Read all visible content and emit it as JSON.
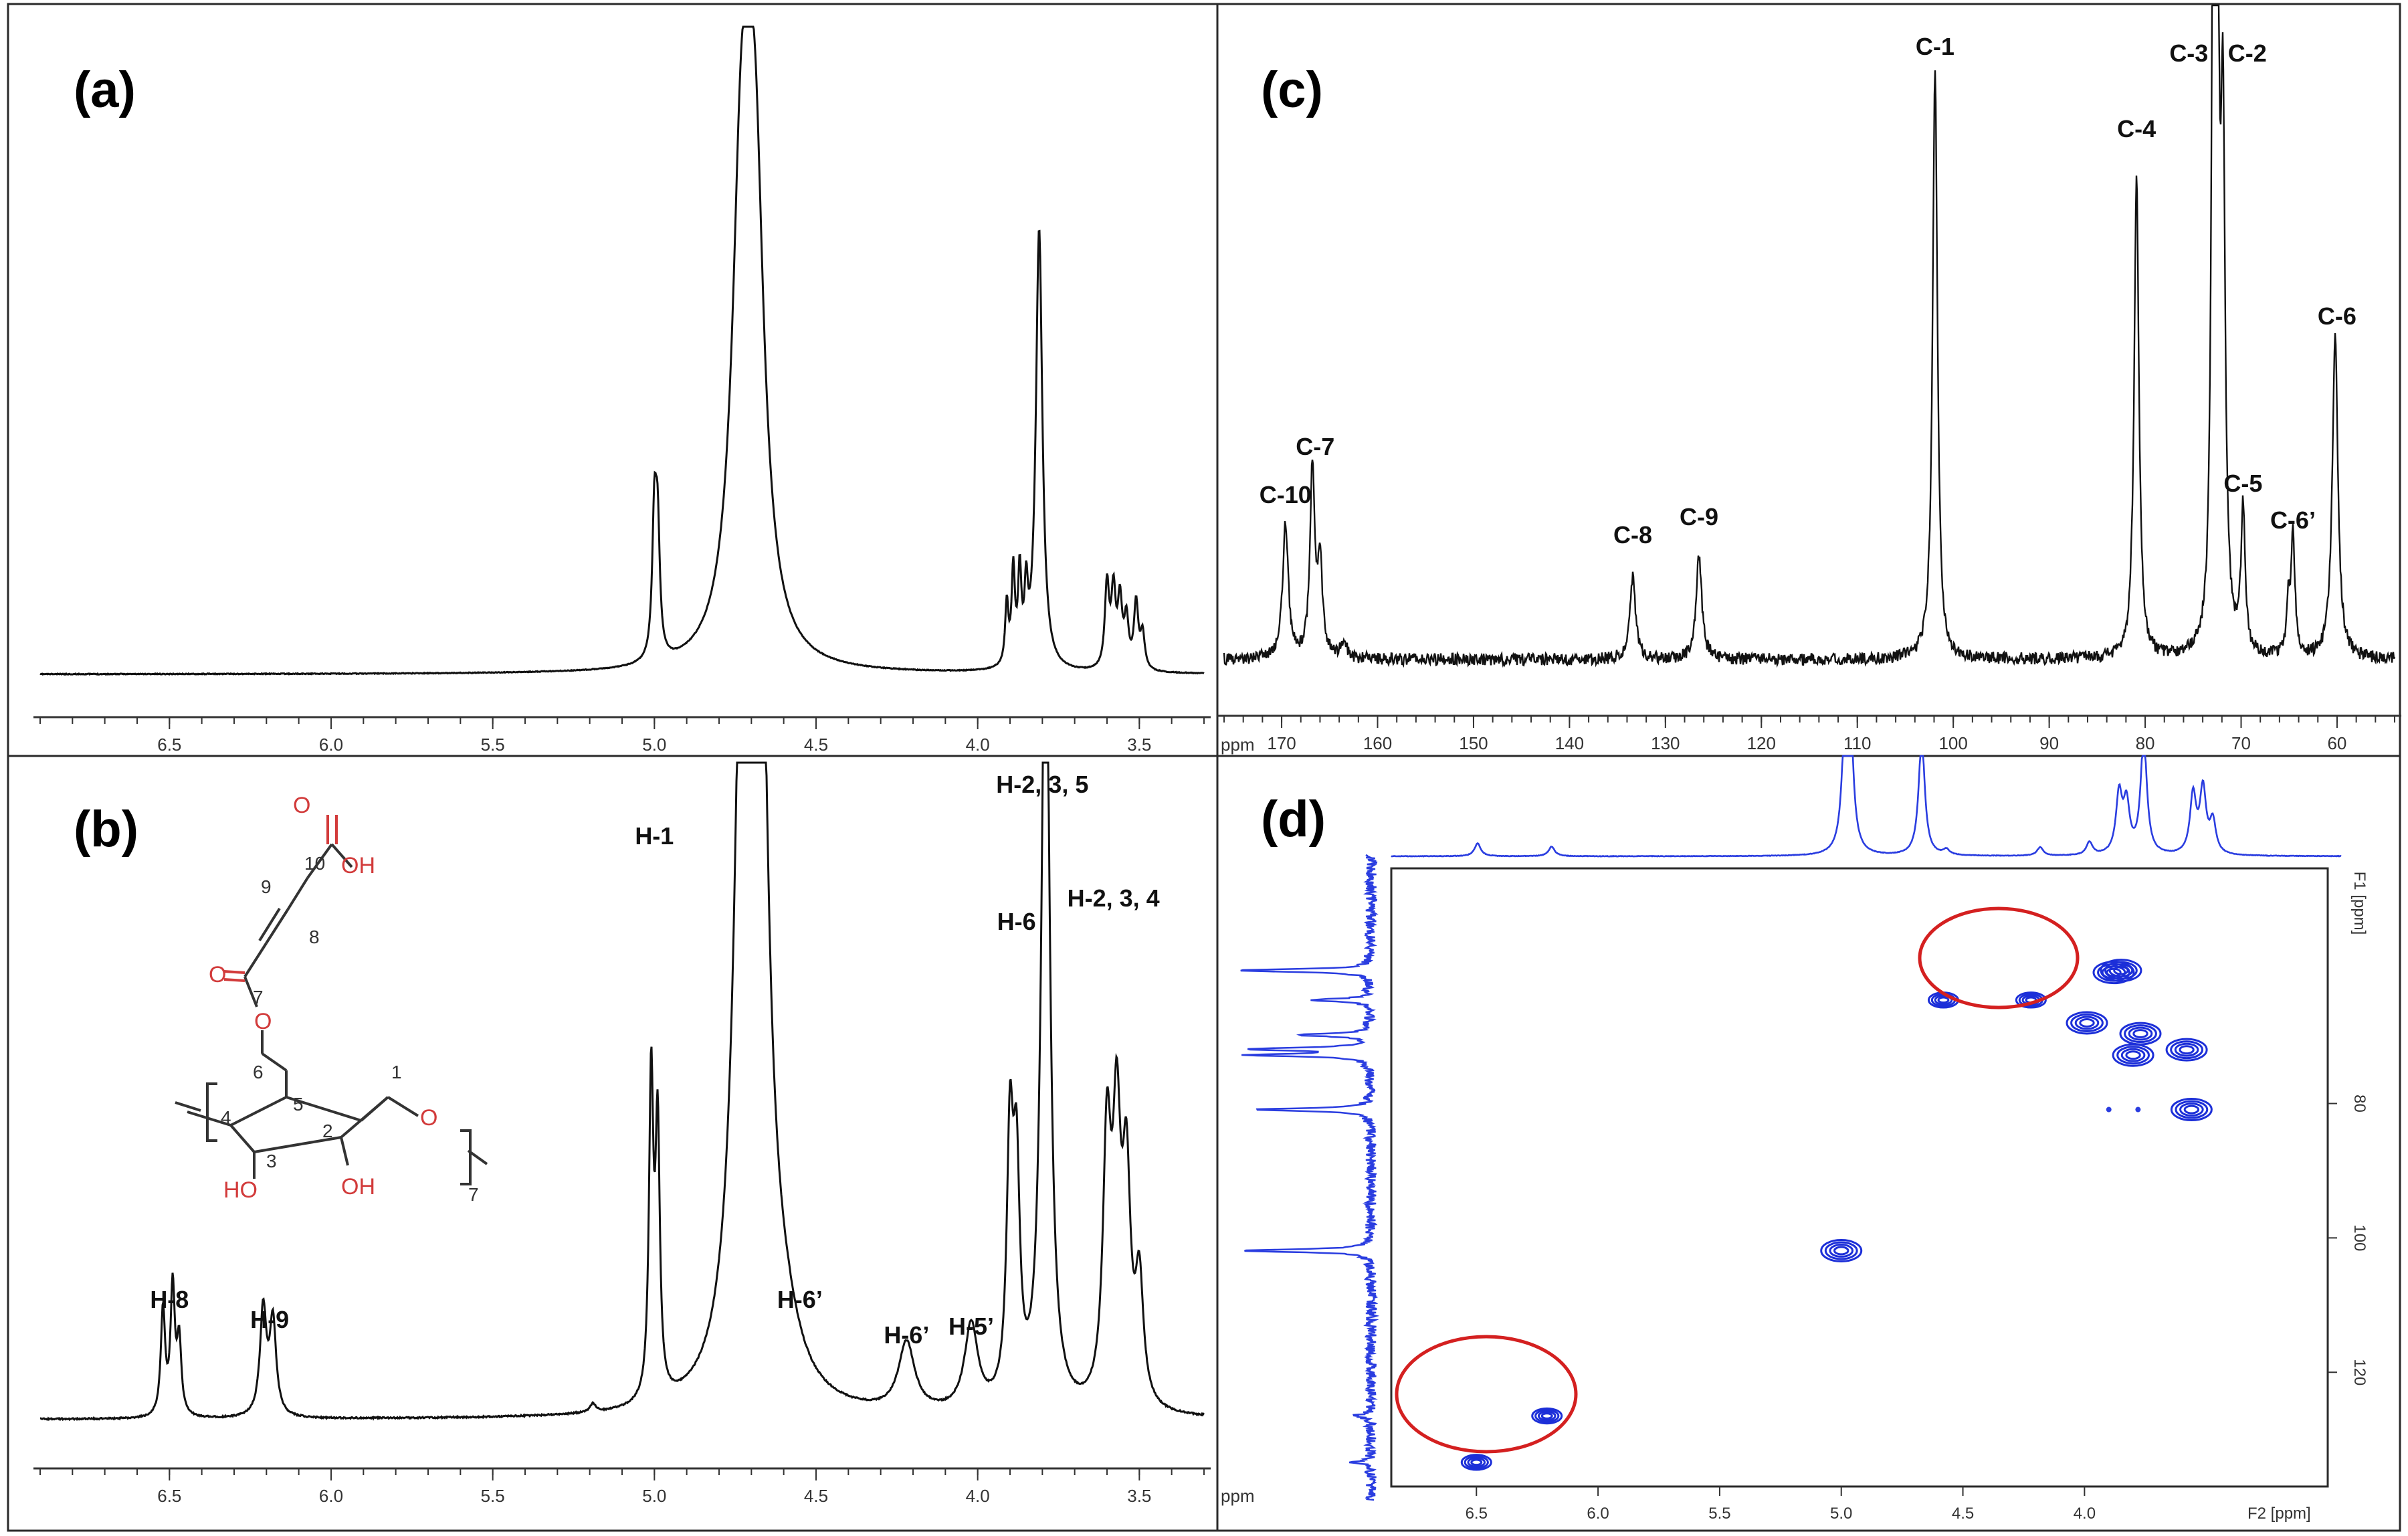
{
  "chart_data": [
    {
      "panel": "(a)",
      "type": "line",
      "spectrum": "1H NMR",
      "x_unit": "ppm",
      "xlim": [
        6.9,
        3.3
      ],
      "x_ticks": [
        "6.5",
        "6.0",
        "5.5",
        "5.0",
        "4.5",
        "4.0",
        "3.5"
      ],
      "peaks": [
        {
          "ppm": 5.0,
          "intensity": 0.62,
          "width": 0.008
        },
        {
          "ppm": 4.99,
          "intensity": 0.55,
          "width": 0.008
        },
        {
          "ppm": 4.73,
          "intensity": 2.0,
          "width": 0.035
        },
        {
          "ppm": 4.69,
          "intensity": 2.0,
          "width": 0.035
        },
        {
          "ppm": 3.91,
          "intensity": 0.28,
          "width": 0.006
        },
        {
          "ppm": 3.89,
          "intensity": 0.42,
          "width": 0.006
        },
        {
          "ppm": 3.87,
          "intensity": 0.4,
          "width": 0.006
        },
        {
          "ppm": 3.85,
          "intensity": 0.3,
          "width": 0.006
        },
        {
          "ppm": 3.81,
          "intensity": 2.0,
          "width": 0.012
        },
        {
          "ppm": 3.6,
          "intensity": 0.38,
          "width": 0.008
        },
        {
          "ppm": 3.58,
          "intensity": 0.34,
          "width": 0.008
        },
        {
          "ppm": 3.56,
          "intensity": 0.3,
          "width": 0.008
        },
        {
          "ppm": 3.54,
          "intensity": 0.22,
          "width": 0.008
        },
        {
          "ppm": 3.51,
          "intensity": 0.3,
          "width": 0.008
        },
        {
          "ppm": 3.49,
          "intensity": 0.16,
          "width": 0.008
        }
      ]
    },
    {
      "panel": "(b)",
      "type": "line",
      "spectrum": "1H NMR",
      "x_unit": "ppm",
      "xlim": [
        6.9,
        3.3
      ],
      "x_ticks": [
        "6.5",
        "6.0",
        "5.5",
        "5.0",
        "4.5",
        "4.0",
        "3.5"
      ],
      "peak_labels": [
        {
          "label": "H-8",
          "ppm": 6.5
        },
        {
          "label": "H-9",
          "ppm": 6.19
        },
        {
          "label": "H-1",
          "ppm": 5.0
        },
        {
          "label": "H-6’",
          "ppm": 4.55
        },
        {
          "label": "H-6’",
          "ppm": 4.22
        },
        {
          "label": "H-5’",
          "ppm": 4.02
        },
        {
          "label": "H-6",
          "ppm": 3.88
        },
        {
          "label": "H-2, 3, 5",
          "ppm": 3.8
        },
        {
          "label": "H-2, 3, 4",
          "ppm": 3.58
        }
      ],
      "peaks": [
        {
          "ppm": 6.52,
          "intensity": 0.25,
          "width": 0.008
        },
        {
          "ppm": 6.49,
          "intensity": 0.3,
          "width": 0.008
        },
        {
          "ppm": 6.47,
          "intensity": 0.17,
          "width": 0.008
        },
        {
          "ppm": 6.21,
          "intensity": 0.25,
          "width": 0.012
        },
        {
          "ppm": 6.18,
          "intensity": 0.22,
          "width": 0.012
        },
        {
          "ppm": 5.19,
          "intensity": 0.02,
          "width": 0.01
        },
        {
          "ppm": 5.01,
          "intensity": 0.75,
          "width": 0.008
        },
        {
          "ppm": 4.99,
          "intensity": 0.62,
          "width": 0.008
        },
        {
          "ppm": 4.72,
          "intensity": 2.0,
          "width": 0.03
        },
        {
          "ppm": 4.68,
          "intensity": 2.0,
          "width": 0.03
        },
        {
          "ppm": 4.6,
          "intensity": 0.1,
          "width": 0.06
        },
        {
          "ppm": 4.22,
          "intensity": 0.16,
          "width": 0.03
        },
        {
          "ppm": 4.02,
          "intensity": 0.2,
          "width": 0.025
        },
        {
          "ppm": 3.9,
          "intensity": 0.6,
          "width": 0.012
        },
        {
          "ppm": 3.88,
          "intensity": 0.5,
          "width": 0.012
        },
        {
          "ppm": 3.79,
          "intensity": 2.0,
          "width": 0.015
        },
        {
          "ppm": 3.6,
          "intensity": 0.6,
          "width": 0.015
        },
        {
          "ppm": 3.57,
          "intensity": 0.6,
          "width": 0.015
        },
        {
          "ppm": 3.54,
          "intensity": 0.5,
          "width": 0.015
        },
        {
          "ppm": 3.5,
          "intensity": 0.28,
          "width": 0.015
        }
      ],
      "structure_labels": {
        "O10a": "O",
        "OH10": "OH",
        "n10": "10",
        "n9": "9",
        "n8": "8",
        "O7a": "O",
        "n7": "7",
        "O7b": "O",
        "n6": "6",
        "n5": "5",
        "n4": "4",
        "n1": "1",
        "n2": "2",
        "n3": "3",
        "OH3": "HO",
        "OH2": "OH",
        "O1": "O",
        "rep": "7"
      }
    },
    {
      "panel": "(c)",
      "type": "line",
      "spectrum": "13C NMR",
      "x_unit": "ppm",
      "xlim": [
        176,
        54
      ],
      "x_ticks": [
        "170",
        "160",
        "150",
        "140",
        "130",
        "120",
        "110",
        "100",
        "90",
        "80",
        "70",
        "60"
      ],
      "peak_labels": [
        {
          "label": "C-10",
          "ppm": 169.6
        },
        {
          "label": "C-7",
          "ppm": 166.5
        },
        {
          "label": "C-8",
          "ppm": 133.4
        },
        {
          "label": "C-9",
          "ppm": 126.5
        },
        {
          "label": "C-1",
          "ppm": 101.9
        },
        {
          "label": "C-4",
          "ppm": 80.9
        },
        {
          "label": "C-3",
          "ppm": 72.8
        },
        {
          "label": "C-2",
          "ppm": 72.0
        },
        {
          "label": "C-5",
          "ppm": 69.8
        },
        {
          "label": "C-6’",
          "ppm": 64.6
        },
        {
          "label": "C-6",
          "ppm": 60.0
        }
      ],
      "peaks": [
        {
          "ppm": 169.6,
          "intensity": 0.33,
          "width": 0.35
        },
        {
          "ppm": 166.8,
          "intensity": 0.45,
          "width": 0.3
        },
        {
          "ppm": 166.0,
          "intensity": 0.22,
          "width": 0.3
        },
        {
          "ppm": 163.5,
          "intensity": 0.05,
          "width": 0.3
        },
        {
          "ppm": 133.4,
          "intensity": 0.2,
          "width": 0.35
        },
        {
          "ppm": 126.5,
          "intensity": 0.25,
          "width": 0.35
        },
        {
          "ppm": 101.9,
          "intensity": 1.42,
          "width": 0.3
        },
        {
          "ppm": 80.9,
          "intensity": 1.15,
          "width": 0.3
        },
        {
          "ppm": 72.9,
          "intensity": 1.7,
          "width": 0.22
        },
        {
          "ppm": 72.5,
          "intensity": 1.7,
          "width": 0.22
        },
        {
          "ppm": 71.9,
          "intensity": 1.2,
          "width": 0.28
        },
        {
          "ppm": 69.8,
          "intensity": 0.35,
          "width": 0.25
        },
        {
          "ppm": 65.1,
          "intensity": 0.12,
          "width": 0.2
        },
        {
          "ppm": 64.6,
          "intensity": 0.29,
          "width": 0.25
        },
        {
          "ppm": 60.2,
          "intensity": 0.78,
          "width": 0.35
        }
      ]
    },
    {
      "panel": "(d)",
      "type": "heatmap",
      "spectrum": "HSQC",
      "x_label": "F2 [ppm]",
      "y_label": "F1 [ppm]",
      "xlim": [
        6.85,
        3.0
      ],
      "ylim": [
        45,
        137
      ],
      "x_ticks": [
        "6.5",
        "6.0",
        "5.5",
        "5.0",
        "4.5",
        "4.0"
      ],
      "y_ticks": [
        "80",
        "100",
        "120"
      ],
      "cross_peaks": [
        {
          "f2": 6.5,
          "f1": 133.4,
          "circled": true
        },
        {
          "f2": 6.21,
          "f1": 126.5,
          "circled": true
        },
        {
          "f2": 5.0,
          "f1": 101.9
        },
        {
          "f2": 4.58,
          "f1": 64.6,
          "circled": true
        },
        {
          "f2": 4.22,
          "f1": 64.6,
          "circled": true
        },
        {
          "f2": 3.88,
          "f1": 60.5
        },
        {
          "f2": 3.8,
          "f1": 72.8
        },
        {
          "f2": 3.77,
          "f1": 69.6
        },
        {
          "f2": 3.58,
          "f1": 72.0
        },
        {
          "f2": 3.56,
          "f1": 80.9
        },
        {
          "f2": 3.85,
          "f1": 60.2
        },
        {
          "f2": 3.99,
          "f1": 68.0
        },
        {
          "f2": 3.9,
          "f1": 80.9,
          "weak": true
        },
        {
          "f2": 3.78,
          "f1": 80.9,
          "weak": true
        }
      ],
      "f2_projection_peaks": [
        {
          "ppm": 6.5,
          "intensity": 0.12
        },
        {
          "ppm": 6.2,
          "intensity": 0.09
        },
        {
          "ppm": 5.01,
          "intensity": 1.1
        },
        {
          "ppm": 4.99,
          "intensity": 1.1
        },
        {
          "ppm": 4.7,
          "intensity": 1.1
        },
        {
          "ppm": 4.6,
          "intensity": 0.05
        },
        {
          "ppm": 4.22,
          "intensity": 0.08
        },
        {
          "ppm": 4.02,
          "intensity": 0.12
        },
        {
          "ppm": 3.9,
          "intensity": 0.55
        },
        {
          "ppm": 3.87,
          "intensity": 0.45
        },
        {
          "ppm": 3.8,
          "intensity": 1.1
        },
        {
          "ppm": 3.6,
          "intensity": 0.55
        },
        {
          "ppm": 3.56,
          "intensity": 0.6
        },
        {
          "ppm": 3.52,
          "intensity": 0.3
        }
      ],
      "f1_projection_peaks": [
        {
          "ppm": 60.2,
          "intensity": 0.9
        },
        {
          "ppm": 64.6,
          "intensity": 0.4
        },
        {
          "ppm": 69.8,
          "intensity": 0.5
        },
        {
          "ppm": 71.9,
          "intensity": 0.8
        },
        {
          "ppm": 72.8,
          "intensity": 0.8
        },
        {
          "ppm": 80.9,
          "intensity": 0.8
        },
        {
          "ppm": 101.9,
          "intensity": 0.9
        },
        {
          "ppm": 126.5,
          "intensity": 0.12
        },
        {
          "ppm": 133.4,
          "intensity": 0.12
        }
      ]
    }
  ]
}
